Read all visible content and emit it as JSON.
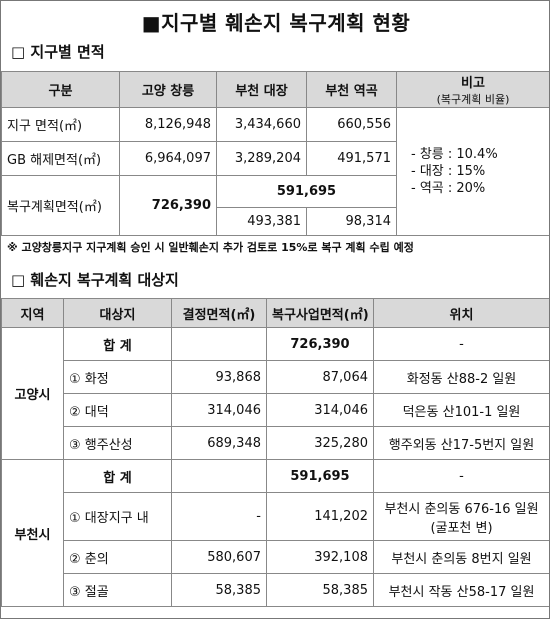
{
  "title": "■지구별 훼손지 복구계획 현황",
  "section1": {
    "heading": "□ 지구별 면적",
    "header": [
      "구분",
      "고양 창릉",
      "부천 대장",
      "부천 역곡"
    ],
    "remark_header": [
      "비고",
      "(복구계획 비율)"
    ],
    "rows": [
      {
        "label": "지구 면적(㎡)",
        "cells": [
          "8,126,948",
          "3,434,660",
          "660,556"
        ]
      },
      {
        "label": "GB 해제면적(㎡)",
        "cells": [
          "6,964,097",
          "3,289,204",
          "491,571"
        ]
      }
    ],
    "plan_row": {
      "label": "복구계획면적(㎡)",
      "changneung": "726,390",
      "bucheon_total": "591,695",
      "daejang": "493,381",
      "yeokgok": "98,314"
    },
    "remarks": [
      "- 창릉 : 10.4%",
      "- 대장 : 15%",
      "- 역곡 : 20%"
    ]
  },
  "footnote": "※ 고양창릉지구 지구계획 승인 시 일반훼손지 추가 검토로 15%로 복구 계획 수립 예정",
  "section2": {
    "heading": "□ 훼손지 복구계획 대상지",
    "header": [
      "지역",
      "대상지",
      "결정면적(㎡)",
      "복구사업면적(㎡)",
      "위치"
    ],
    "groups": [
      {
        "region": "고양시",
        "rows": [
          {
            "site": "합 계",
            "restore": "726,390",
            "location": [
              "-"
            ]
          },
          {
            "site": "① 화정",
            "decided": "93,868",
            "restore": "87,064",
            "location": [
              "화정동 산88-2 일원"
            ]
          },
          {
            "site": "② 대덕",
            "decided": "314,046",
            "restore": "314,046",
            "location": [
              "덕은동 산101-1 일원"
            ]
          },
          {
            "site": "③ 행주산성",
            "decided": "689,348",
            "restore": "325,280",
            "location": [
              "행주외동 산17-5번지 일원"
            ]
          }
        ]
      },
      {
        "region": "부천시",
        "rows": [
          {
            "site": "합 계",
            "restore": "591,695",
            "location": [
              "-"
            ]
          },
          {
            "site": "① 대장지구 내",
            "decided": "-",
            "restore": "141,202",
            "location": [
              "부천시 춘의동 676-16 일원",
              "(굴포천 변)"
            ]
          },
          {
            "site": "② 춘의",
            "decided": "580,607",
            "restore": "392,108",
            "location": [
              "부천시 춘의동 8번지 일원"
            ]
          },
          {
            "site": "③ 절골",
            "decided": "58,385",
            "restore": "58,385",
            "location": [
              "부천시 작동 산58-17 일원"
            ]
          }
        ]
      }
    ]
  }
}
